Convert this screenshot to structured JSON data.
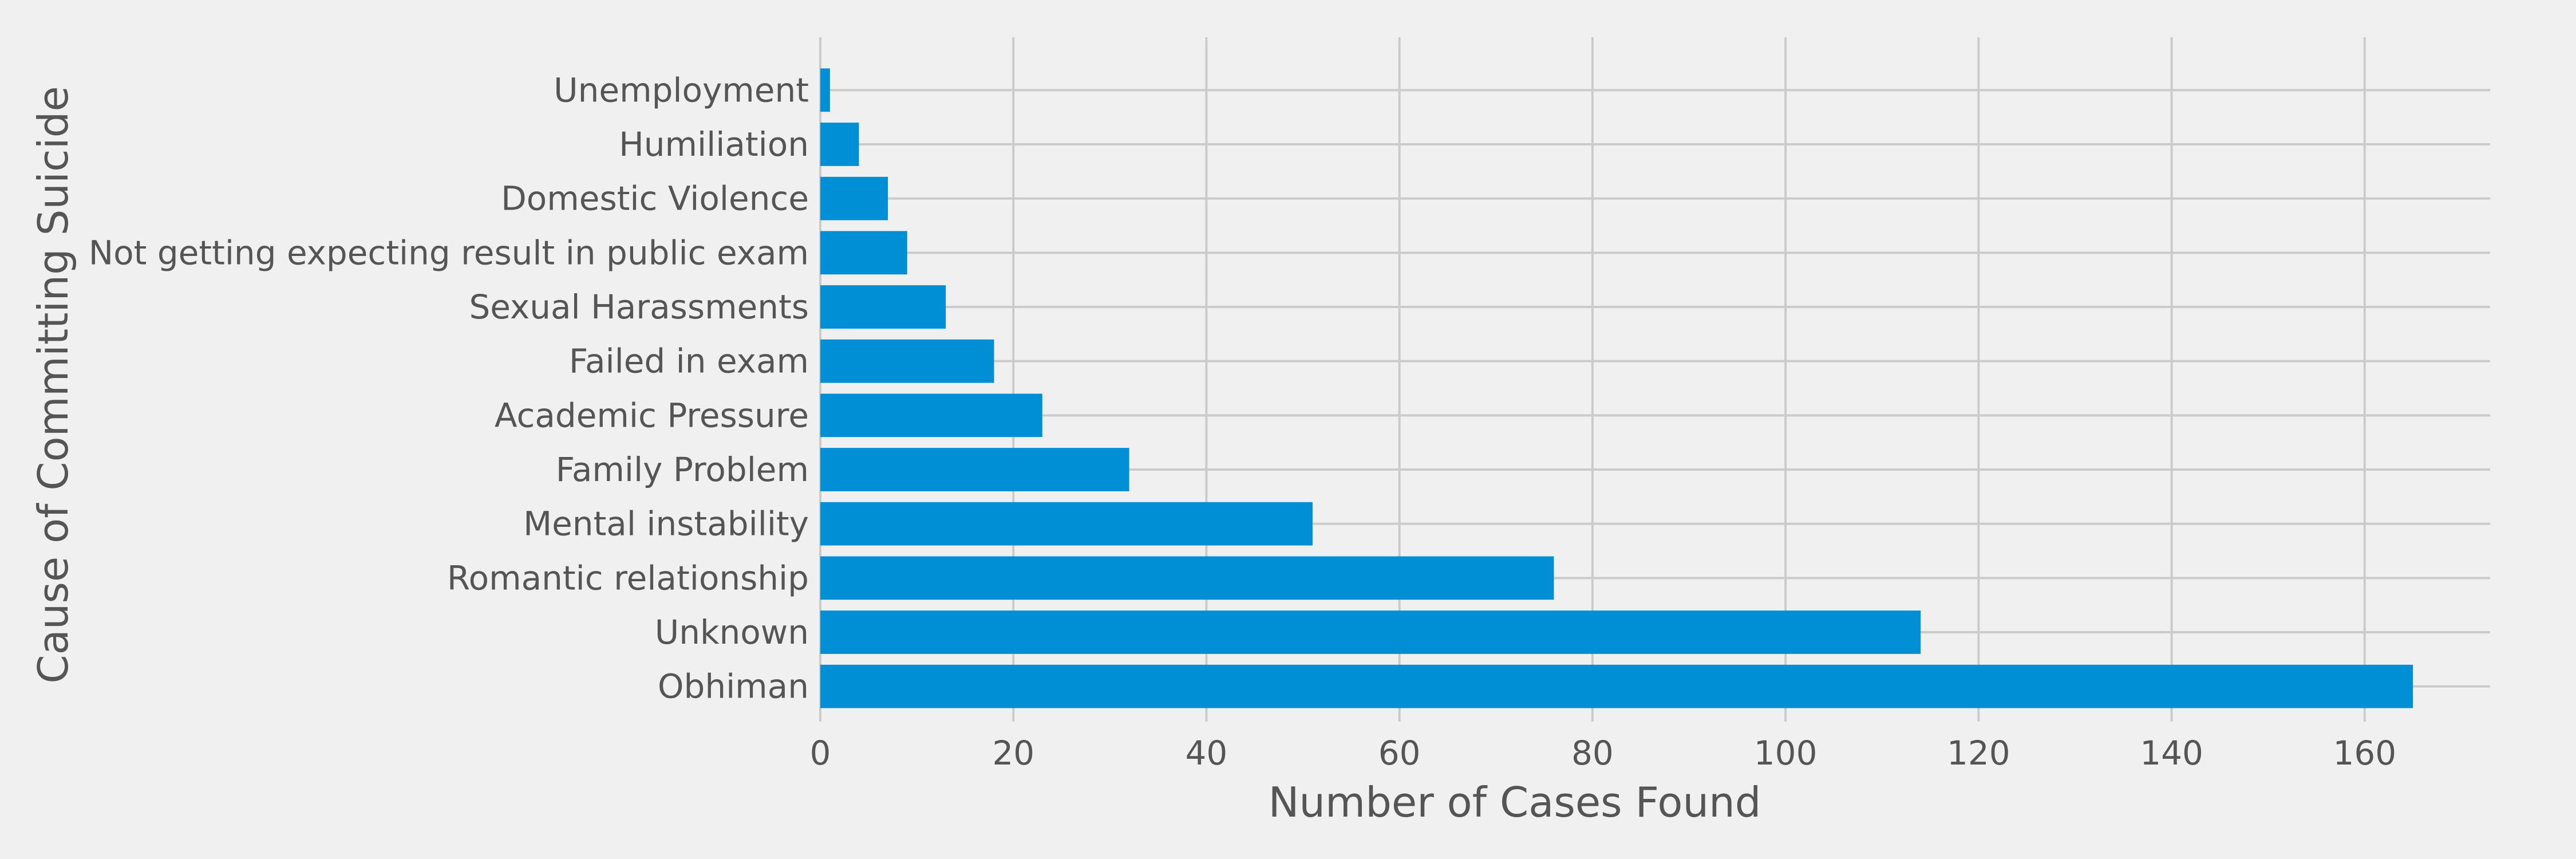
{
  "chart_data": {
    "type": "bar",
    "orientation": "horizontal",
    "categories": [
      "Obhiman",
      "Unknown",
      "Romantic relationship",
      "Mental instability",
      "Family Problem",
      "Academic Pressure",
      "Failed in exam",
      "Sexual Harassments",
      "Not getting expecting result in public exam",
      "Domestic Violence",
      "Humiliation",
      "Unemployment"
    ],
    "values": [
      165,
      114,
      76,
      51,
      32,
      23,
      18,
      13,
      9,
      7,
      4,
      1
    ],
    "xlabel": "Number of Cases Found",
    "ylabel": "Cause of Committing Suicide",
    "xlim": [
      0,
      173
    ],
    "xticks": [
      0,
      20,
      40,
      60,
      80,
      100,
      120,
      140,
      160
    ],
    "grid": true,
    "bar_color": "#008fd5",
    "background_color": "#f0f0f0",
    "grid_color": "#cbcbcb",
    "text_color": "#555555"
  }
}
